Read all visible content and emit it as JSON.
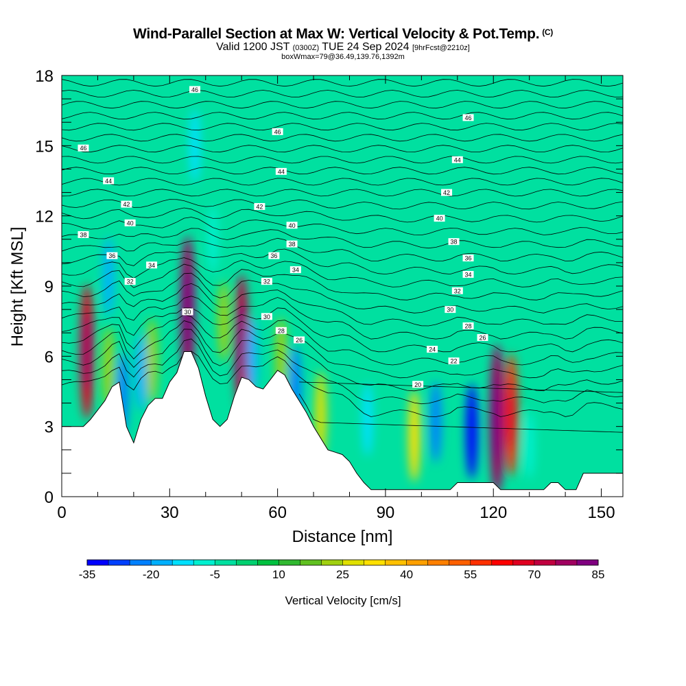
{
  "header": {
    "title": "Wind-Parallel Section at Max W: Vertical Velocity & Pot.Temp.",
    "title_mark": "(C)",
    "valid_prefix": "Valid 1200 JST",
    "valid_utc": "(0300Z)",
    "valid_date": "TUE 24 Sep 2024",
    "forecast": "[9hrFcst@2210z]",
    "box_info": "boxWmax=79@36.49,139.76,1392m"
  },
  "chart_data": {
    "type": "heatmap",
    "title": "Wind-Parallel Section at Max W: Vertical Velocity & Pot.Temp.",
    "xlabel": "Distance [nm]",
    "ylabel": "Height [Kft MSL]",
    "xlim": [
      0,
      156
    ],
    "ylim": [
      0,
      18
    ],
    "x_ticks": [
      "0",
      "30",
      "60",
      "90",
      "120",
      "150"
    ],
    "y_ticks": [
      "0",
      "3",
      "6",
      "9",
      "12",
      "15",
      "18"
    ],
    "colorbar": {
      "label": "Vertical Velocity [cm/s]",
      "tick_labels": [
        "-35",
        "-20",
        "-5",
        "10",
        "25",
        "40",
        "55",
        "70",
        "85"
      ],
      "levels": [
        -35,
        -30,
        -25,
        -20,
        -15,
        -10,
        -5,
        0,
        5,
        10,
        15,
        20,
        25,
        30,
        35,
        40,
        45,
        50,
        55,
        60,
        65,
        70,
        75,
        80,
        85
      ],
      "colors": [
        "#0000ff",
        "#0040ff",
        "#0080ff",
        "#00b0ff",
        "#00e0ff",
        "#00f0d0",
        "#00e0a0",
        "#00d070",
        "#00c040",
        "#30b830",
        "#60c020",
        "#a0d010",
        "#e0e000",
        "#ffe000",
        "#ffc000",
        "#ffa000",
        "#ff8000",
        "#ff6000",
        "#ff3000",
        "#ff0000",
        "#e00020",
        "#c00040",
        "#a00060",
        "#800080"
      ]
    },
    "terrain": [
      [
        0,
        3.0
      ],
      [
        6,
        3.0
      ],
      [
        8,
        3.3
      ],
      [
        10,
        3.7
      ],
      [
        12,
        4.1
      ],
      [
        14,
        4.7
      ],
      [
        16,
        4.9
      ],
      [
        18,
        3.0
      ],
      [
        20,
        2.3
      ],
      [
        22,
        3.3
      ],
      [
        24,
        3.9
      ],
      [
        26,
        4.2
      ],
      [
        28,
        4.2
      ],
      [
        30,
        4.9
      ],
      [
        32,
        5.3
      ],
      [
        34,
        6.2
      ],
      [
        36,
        6.2
      ],
      [
        38,
        5.5
      ],
      [
        40,
        4.3
      ],
      [
        42,
        3.3
      ],
      [
        44,
        3.0
      ],
      [
        46,
        3.3
      ],
      [
        48,
        4.3
      ],
      [
        50,
        5.1
      ],
      [
        52,
        5.0
      ],
      [
        54,
        4.7
      ],
      [
        56,
        4.6
      ],
      [
        58,
        5.0
      ],
      [
        60,
        5.4
      ],
      [
        62,
        5.2
      ],
      [
        64,
        4.6
      ],
      [
        66,
        4.1
      ],
      [
        68,
        3.6
      ],
      [
        70,
        3.0
      ],
      [
        72,
        2.5
      ],
      [
        74,
        2.0
      ],
      [
        76,
        1.9
      ],
      [
        78,
        1.8
      ],
      [
        80,
        1.5
      ],
      [
        82,
        1.0
      ],
      [
        84,
        0.6
      ],
      [
        86,
        0.3
      ],
      [
        100,
        0.3
      ],
      [
        108,
        0.3
      ],
      [
        110,
        0.6
      ],
      [
        120,
        0.6
      ],
      [
        122,
        0.3
      ],
      [
        134,
        0.3
      ],
      [
        136,
        0.6
      ],
      [
        138,
        0.6
      ],
      [
        140,
        0.3
      ],
      [
        143,
        0.3
      ],
      [
        145,
        1.0
      ],
      [
        156,
        1.0
      ]
    ],
    "vertical_velocity_cells": [
      {
        "x": 7,
        "y": 6.2,
        "w": 65
      },
      {
        "x": 13,
        "y": 9.4,
        "w": -20
      },
      {
        "x": 13,
        "y": 5.5,
        "w": 22
      },
      {
        "x": 17,
        "y": 4.4,
        "w": -22
      },
      {
        "x": 22,
        "y": 5.3,
        "w": -18
      },
      {
        "x": 25,
        "y": 5.8,
        "w": 24
      },
      {
        "x": 35,
        "y": 8.0,
        "w": 75
      },
      {
        "x": 37,
        "y": 15.0,
        "w": -15
      },
      {
        "x": 42,
        "y": 11.0,
        "w": -10
      },
      {
        "x": 45,
        "y": 7.5,
        "w": 20
      },
      {
        "x": 50,
        "y": 6.5,
        "w": 70
      },
      {
        "x": 53,
        "y": 6.0,
        "w": -18
      },
      {
        "x": 61,
        "y": 5.9,
        "w": 22
      },
      {
        "x": 65,
        "y": 4.6,
        "w": -25
      },
      {
        "x": 72,
        "y": 3.5,
        "w": 26
      },
      {
        "x": 85,
        "y": 3.3,
        "w": -15
      },
      {
        "x": 98,
        "y": 2.6,
        "w": 30
      },
      {
        "x": 104,
        "y": 3.2,
        "w": -22
      },
      {
        "x": 114,
        "y": 2.8,
        "w": -33
      },
      {
        "x": 121,
        "y": 3.3,
        "w": 78
      },
      {
        "x": 125,
        "y": 3.5,
        "w": 55
      },
      {
        "x": 130,
        "y": 2.2,
        "w": -10
      }
    ],
    "theta_contours": {
      "units": "K (labelled minus 300)",
      "labels": [
        {
          "text": "46",
          "x": 37,
          "y": 17.4
        },
        {
          "text": "46",
          "x": 6,
          "y": 14.9
        },
        {
          "text": "46",
          "x": 60,
          "y": 15.6
        },
        {
          "text": "46",
          "x": 113,
          "y": 16.2
        },
        {
          "text": "44",
          "x": 13,
          "y": 13.5
        },
        {
          "text": "44",
          "x": 61,
          "y": 13.9
        },
        {
          "text": "44",
          "x": 110,
          "y": 14.4
        },
        {
          "text": "42",
          "x": 18,
          "y": 12.5
        },
        {
          "text": "42",
          "x": 55,
          "y": 12.4
        },
        {
          "text": "42",
          "x": 107,
          "y": 13.0
        },
        {
          "text": "40",
          "x": 19,
          "y": 11.7
        },
        {
          "text": "40",
          "x": 64,
          "y": 11.6
        },
        {
          "text": "40",
          "x": 105,
          "y": 11.9
        },
        {
          "text": "38",
          "x": 6,
          "y": 11.2
        },
        {
          "text": "38",
          "x": 64,
          "y": 10.8
        },
        {
          "text": "38",
          "x": 109,
          "y": 10.9
        },
        {
          "text": "36",
          "x": 14,
          "y": 10.3
        },
        {
          "text": "36",
          "x": 59,
          "y": 10.3
        },
        {
          "text": "36",
          "x": 113,
          "y": 10.2
        },
        {
          "text": "34",
          "x": 25,
          "y": 9.9
        },
        {
          "text": "34",
          "x": 65,
          "y": 9.7
        },
        {
          "text": "34",
          "x": 113,
          "y": 9.5
        },
        {
          "text": "32",
          "x": 19,
          "y": 9.2
        },
        {
          "text": "32",
          "x": 57,
          "y": 9.2
        },
        {
          "text": "32",
          "x": 110,
          "y": 8.8
        },
        {
          "text": "30",
          "x": 35,
          "y": 7.9
        },
        {
          "text": "30",
          "x": 57,
          "y": 7.7
        },
        {
          "text": "30",
          "x": 108,
          "y": 8.0
        },
        {
          "text": "28",
          "x": 61,
          "y": 7.1
        },
        {
          "text": "28",
          "x": 113,
          "y": 7.3
        },
        {
          "text": "26",
          "x": 66,
          "y": 6.7
        },
        {
          "text": "26",
          "x": 117,
          "y": 6.8
        },
        {
          "text": "24",
          "x": 103,
          "y": 6.3
        },
        {
          "text": "22",
          "x": 109,
          "y": 5.8
        },
        {
          "text": "20",
          "x": 99,
          "y": 4.8
        }
      ]
    }
  }
}
